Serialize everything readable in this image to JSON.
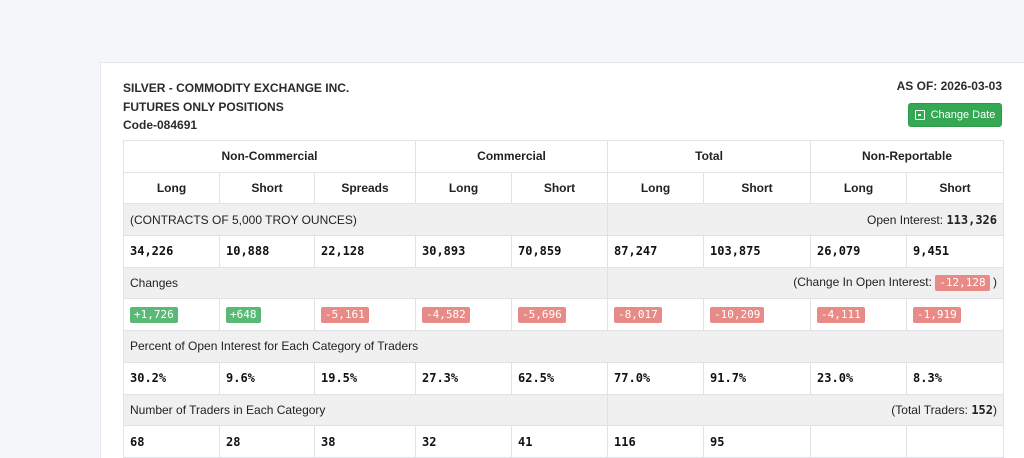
{
  "report": {
    "title": "SILVER - COMMODITY EXCHANGE INC.",
    "subtitle": "FUTURES ONLY POSITIONS",
    "code": "Code-084691",
    "as_of": "AS OF: 2026-03-03",
    "change_date_label": "Change Date"
  },
  "columns": {
    "groups": [
      "Non-Commercial",
      "Commercial",
      "Total",
      "Non-Reportable"
    ],
    "sub": [
      "Long",
      "Short",
      "Spreads",
      "Long",
      "Short",
      "Long",
      "Short",
      "Long",
      "Short"
    ]
  },
  "contracts": {
    "label": "(CONTRACTS OF 5,000 TROY OUNCES)",
    "oi_label": "Open Interest: ",
    "oi_value": "113,326",
    "values": [
      "34,226",
      "10,888",
      "22,128",
      "30,893",
      "70,859",
      "87,247",
      "103,875",
      "26,079",
      "9,451"
    ]
  },
  "changes": {
    "label": "Changes",
    "oi_label": "(Change In Open Interest: ",
    "oi_value": "-12,128",
    "oi_close": " )",
    "values": [
      "+1,726",
      "+648",
      "-5,161",
      "-4,582",
      "-5,696",
      "-8,017",
      "-10,209",
      "-4,111",
      "-1,919"
    ],
    "colors": {
      "positive": "#5bb978",
      "negative": "#e88a86"
    }
  },
  "percent": {
    "label": "Percent of Open Interest for Each Category of Traders",
    "values": [
      "30.2%",
      "9.6%",
      "19.5%",
      "27.3%",
      "62.5%",
      "77.0%",
      "91.7%",
      "23.0%",
      "8.3%"
    ]
  },
  "traders": {
    "label": "Number of Traders in Each Category",
    "total_label": "(Total Traders: ",
    "total_value": "152",
    "total_close": ")",
    "values": [
      "68",
      "28",
      "38",
      "32",
      "41",
      "116",
      "95",
      "",
      ""
    ]
  }
}
